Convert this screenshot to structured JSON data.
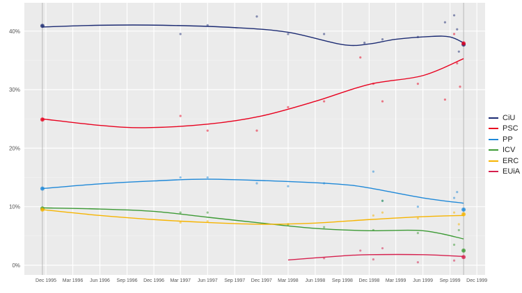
{
  "chart_data": {
    "type": "line",
    "x_ticks": [
      "Dec 1995",
      "Mar 1996",
      "Jun 1996",
      "Sep 1996",
      "Dec 1996",
      "Mar 1997",
      "Jun 1997",
      "Sep 1997",
      "Dec 1997",
      "Mar 1998",
      "Jun 1998",
      "Sep 1998",
      "Dec 1998",
      "Mar 1999",
      "Jun 1999",
      "Sep 1999",
      "Dec 1999"
    ],
    "x_tick_dates": [
      "1995-12-01",
      "1996-03-01",
      "1996-06-01",
      "1996-09-01",
      "1996-12-01",
      "1997-03-01",
      "1997-06-01",
      "1997-09-01",
      "1997-12-01",
      "1998-03-01",
      "1998-06-01",
      "1998-09-01",
      "1998-12-01",
      "1999-03-01",
      "1999-06-01",
      "1999-09-01",
      "1999-12-01"
    ],
    "y_ticks": [
      "0%",
      "10%",
      "20%",
      "30%",
      "40%"
    ],
    "y_tick_values": [
      0,
      10,
      20,
      30,
      40
    ],
    "ylim": [
      -1.5,
      45
    ],
    "grid": true,
    "legend_position": "right",
    "election_dates": [
      "1995-11-19",
      "1999-10-17"
    ],
    "series": [
      {
        "name": "CiU",
        "color": "#1b2a72",
        "trend": [
          [
            "1995-11-19",
            40.7
          ],
          [
            "1996-06-01",
            41.0
          ],
          [
            "1997-01-01",
            41.0
          ],
          [
            "1997-09-01",
            40.6
          ],
          [
            "1998-03-01",
            39.8
          ],
          [
            "1998-09-01",
            37.7
          ],
          [
            "1998-12-01",
            37.8
          ],
          [
            "1999-03-01",
            38.6
          ],
          [
            "1999-07-01",
            39.1
          ],
          [
            "1999-09-01",
            39.0
          ],
          [
            "1999-10-17",
            38.0
          ]
        ],
        "points": [
          [
            "1995-11-19",
            40.9
          ],
          [
            "1997-03-01",
            39.5
          ],
          [
            "1997-06-01",
            41.0
          ],
          [
            "1997-11-15",
            42.5
          ],
          [
            "1998-03-01",
            39.5
          ],
          [
            "1998-07-01",
            39.5
          ],
          [
            "1998-11-15",
            38.0
          ],
          [
            "1999-01-15",
            38.6
          ],
          [
            "1999-05-15",
            39.0
          ],
          [
            "1999-08-15",
            41.5
          ],
          [
            "1999-09-15",
            42.7
          ],
          [
            "1999-09-25",
            40.3
          ],
          [
            "1999-10-01",
            36.5
          ],
          [
            "1999-10-17",
            37.7
          ]
        ]
      },
      {
        "name": "PSC",
        "color": "#e8001e",
        "trend": [
          [
            "1995-11-19",
            25.0
          ],
          [
            "1996-06-01",
            23.9
          ],
          [
            "1996-11-01",
            23.5
          ],
          [
            "1997-06-01",
            24.1
          ],
          [
            "1997-12-01",
            25.5
          ],
          [
            "1998-06-01",
            28.0
          ],
          [
            "1998-12-01",
            30.9
          ],
          [
            "1999-06-01",
            32.4
          ],
          [
            "1999-10-17",
            35.3
          ]
        ],
        "points": [
          [
            "1995-11-19",
            24.9
          ],
          [
            "1997-03-01",
            25.5
          ],
          [
            "1997-06-01",
            23.0
          ],
          [
            "1997-11-15",
            23.0
          ],
          [
            "1998-03-01",
            27.0
          ],
          [
            "1998-07-01",
            28.0
          ],
          [
            "1998-11-01",
            35.5
          ],
          [
            "1998-12-15",
            31.0
          ],
          [
            "1999-01-15",
            28.0
          ],
          [
            "1999-05-15",
            31.0
          ],
          [
            "1999-08-15",
            28.3
          ],
          [
            "1999-09-15",
            39.5
          ],
          [
            "1999-09-25",
            34.5
          ],
          [
            "1999-10-05",
            30.5
          ],
          [
            "1999-10-17",
            37.9
          ]
        ]
      },
      {
        "name": "PP",
        "color": "#1e88d8",
        "trend": [
          [
            "1995-11-19",
            13.1
          ],
          [
            "1996-06-01",
            13.9
          ],
          [
            "1996-12-01",
            14.4
          ],
          [
            "1997-06-01",
            14.7
          ],
          [
            "1998-03-01",
            14.3
          ],
          [
            "1998-09-01",
            13.8
          ],
          [
            "1998-12-01",
            13.2
          ],
          [
            "1999-06-01",
            11.5
          ],
          [
            "1999-10-17",
            10.6
          ]
        ],
        "points": [
          [
            "1995-11-19",
            13.1
          ],
          [
            "1997-03-01",
            15.0
          ],
          [
            "1997-06-01",
            15.0
          ],
          [
            "1997-11-15",
            14.0
          ],
          [
            "1998-03-01",
            13.5
          ],
          [
            "1998-07-01",
            14.0
          ],
          [
            "1998-12-15",
            16.0
          ],
          [
            "1999-01-15",
            11.0
          ],
          [
            "1999-05-15",
            10.0
          ],
          [
            "1999-09-15",
            11.5
          ],
          [
            "1999-09-25",
            12.5
          ],
          [
            "1999-10-17",
            9.5
          ]
        ]
      },
      {
        "name": "ICV",
        "color": "#3c9a34",
        "trend": [
          [
            "1995-11-19",
            9.8
          ],
          [
            "1996-06-01",
            9.6
          ],
          [
            "1996-12-01",
            9.2
          ],
          [
            "1997-06-01",
            8.2
          ],
          [
            "1997-12-01",
            7.2
          ],
          [
            "1998-06-01",
            6.3
          ],
          [
            "1998-12-01",
            5.9
          ],
          [
            "1999-06-01",
            5.9
          ],
          [
            "1999-10-17",
            4.5
          ]
        ],
        "points": [
          [
            "1995-11-19",
            9.7
          ],
          [
            "1997-03-01",
            9.0
          ],
          [
            "1997-06-01",
            9.0
          ],
          [
            "1998-03-01",
            7.0
          ],
          [
            "1998-07-01",
            6.5
          ],
          [
            "1998-12-15",
            6.0
          ],
          [
            "1999-01-15",
            11.0
          ],
          [
            "1999-05-15",
            5.5
          ],
          [
            "1999-09-15",
            3.5
          ],
          [
            "1999-10-01",
            6.0
          ],
          [
            "1999-10-17",
            2.5
          ]
        ]
      },
      {
        "name": "ERC",
        "color": "#f6b400",
        "trend": [
          [
            "1995-11-19",
            9.5
          ],
          [
            "1996-06-01",
            8.5
          ],
          [
            "1996-12-01",
            7.8
          ],
          [
            "1997-06-01",
            7.3
          ],
          [
            "1997-12-01",
            7.0
          ],
          [
            "1998-06-01",
            7.2
          ],
          [
            "1998-12-01",
            7.8
          ],
          [
            "1999-06-01",
            8.3
          ],
          [
            "1999-10-17",
            8.5
          ]
        ],
        "points": [
          [
            "1995-11-19",
            9.5
          ],
          [
            "1997-03-01",
            7.3
          ],
          [
            "1997-06-01",
            7.5
          ],
          [
            "1998-03-01",
            7.0
          ],
          [
            "1998-12-15",
            8.5
          ],
          [
            "1999-01-15",
            9.0
          ],
          [
            "1999-05-15",
            8.0
          ],
          [
            "1999-09-15",
            9.0
          ],
          [
            "1999-10-01",
            7.0
          ],
          [
            "1999-10-17",
            8.7
          ]
        ]
      },
      {
        "name": "EUiA",
        "color": "#d6204e",
        "trend": [
          [
            "1998-03-01",
            0.9
          ],
          [
            "1998-09-01",
            1.6
          ],
          [
            "1998-12-01",
            1.8
          ],
          [
            "1999-06-01",
            1.8
          ],
          [
            "1999-10-17",
            1.5
          ]
        ],
        "points": [
          [
            "1998-07-01",
            1.2
          ],
          [
            "1998-11-01",
            2.5
          ],
          [
            "1998-12-15",
            1.0
          ],
          [
            "1999-01-15",
            2.9
          ],
          [
            "1999-05-15",
            0.5
          ],
          [
            "1999-09-15",
            0.8
          ],
          [
            "1999-10-17",
            1.4
          ]
        ]
      }
    ]
  }
}
